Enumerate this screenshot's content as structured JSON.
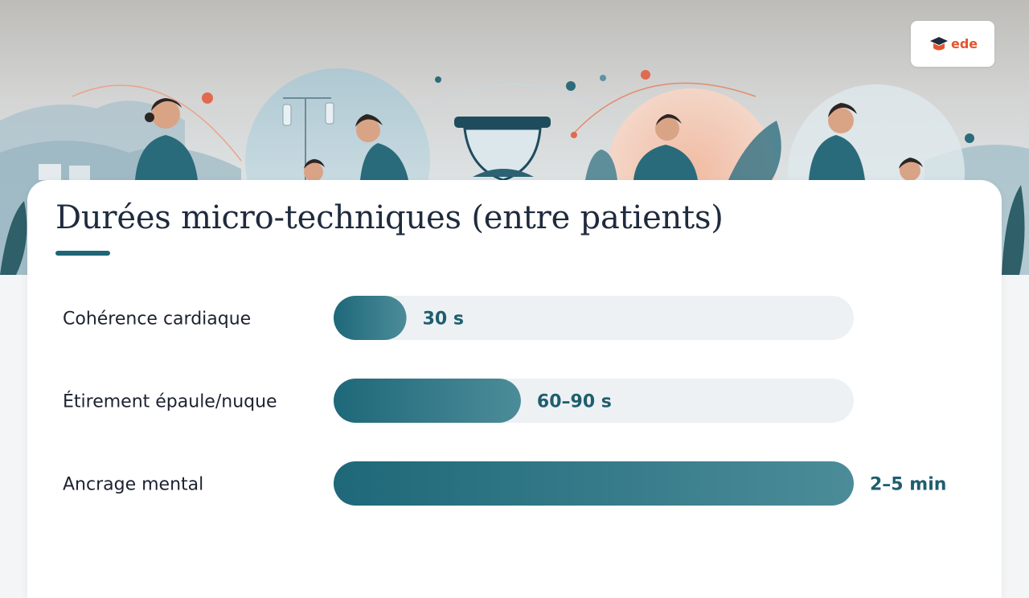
{
  "slide": {
    "title": "Durées micro-techniques (entre patients)"
  },
  "logo": {
    "text": "ede"
  },
  "chart_data": {
    "type": "bar",
    "orientation": "horizontal",
    "title": "Durées micro-techniques (entre patients)",
    "categories": [
      "Cohérence cardiaque",
      "Étirement épaule/nuque",
      "Ancrage mental"
    ],
    "values": [
      0.14,
      0.36,
      1.0
    ],
    "value_labels": [
      "30 s",
      "60–90 s",
      "2–5 min"
    ],
    "grid": false,
    "legend": "none",
    "colors": {
      "bar_start": "#1e6879",
      "bar_end": "#4c8c99",
      "track": "#edf1f4",
      "value_text": "#1f5e6e"
    }
  }
}
